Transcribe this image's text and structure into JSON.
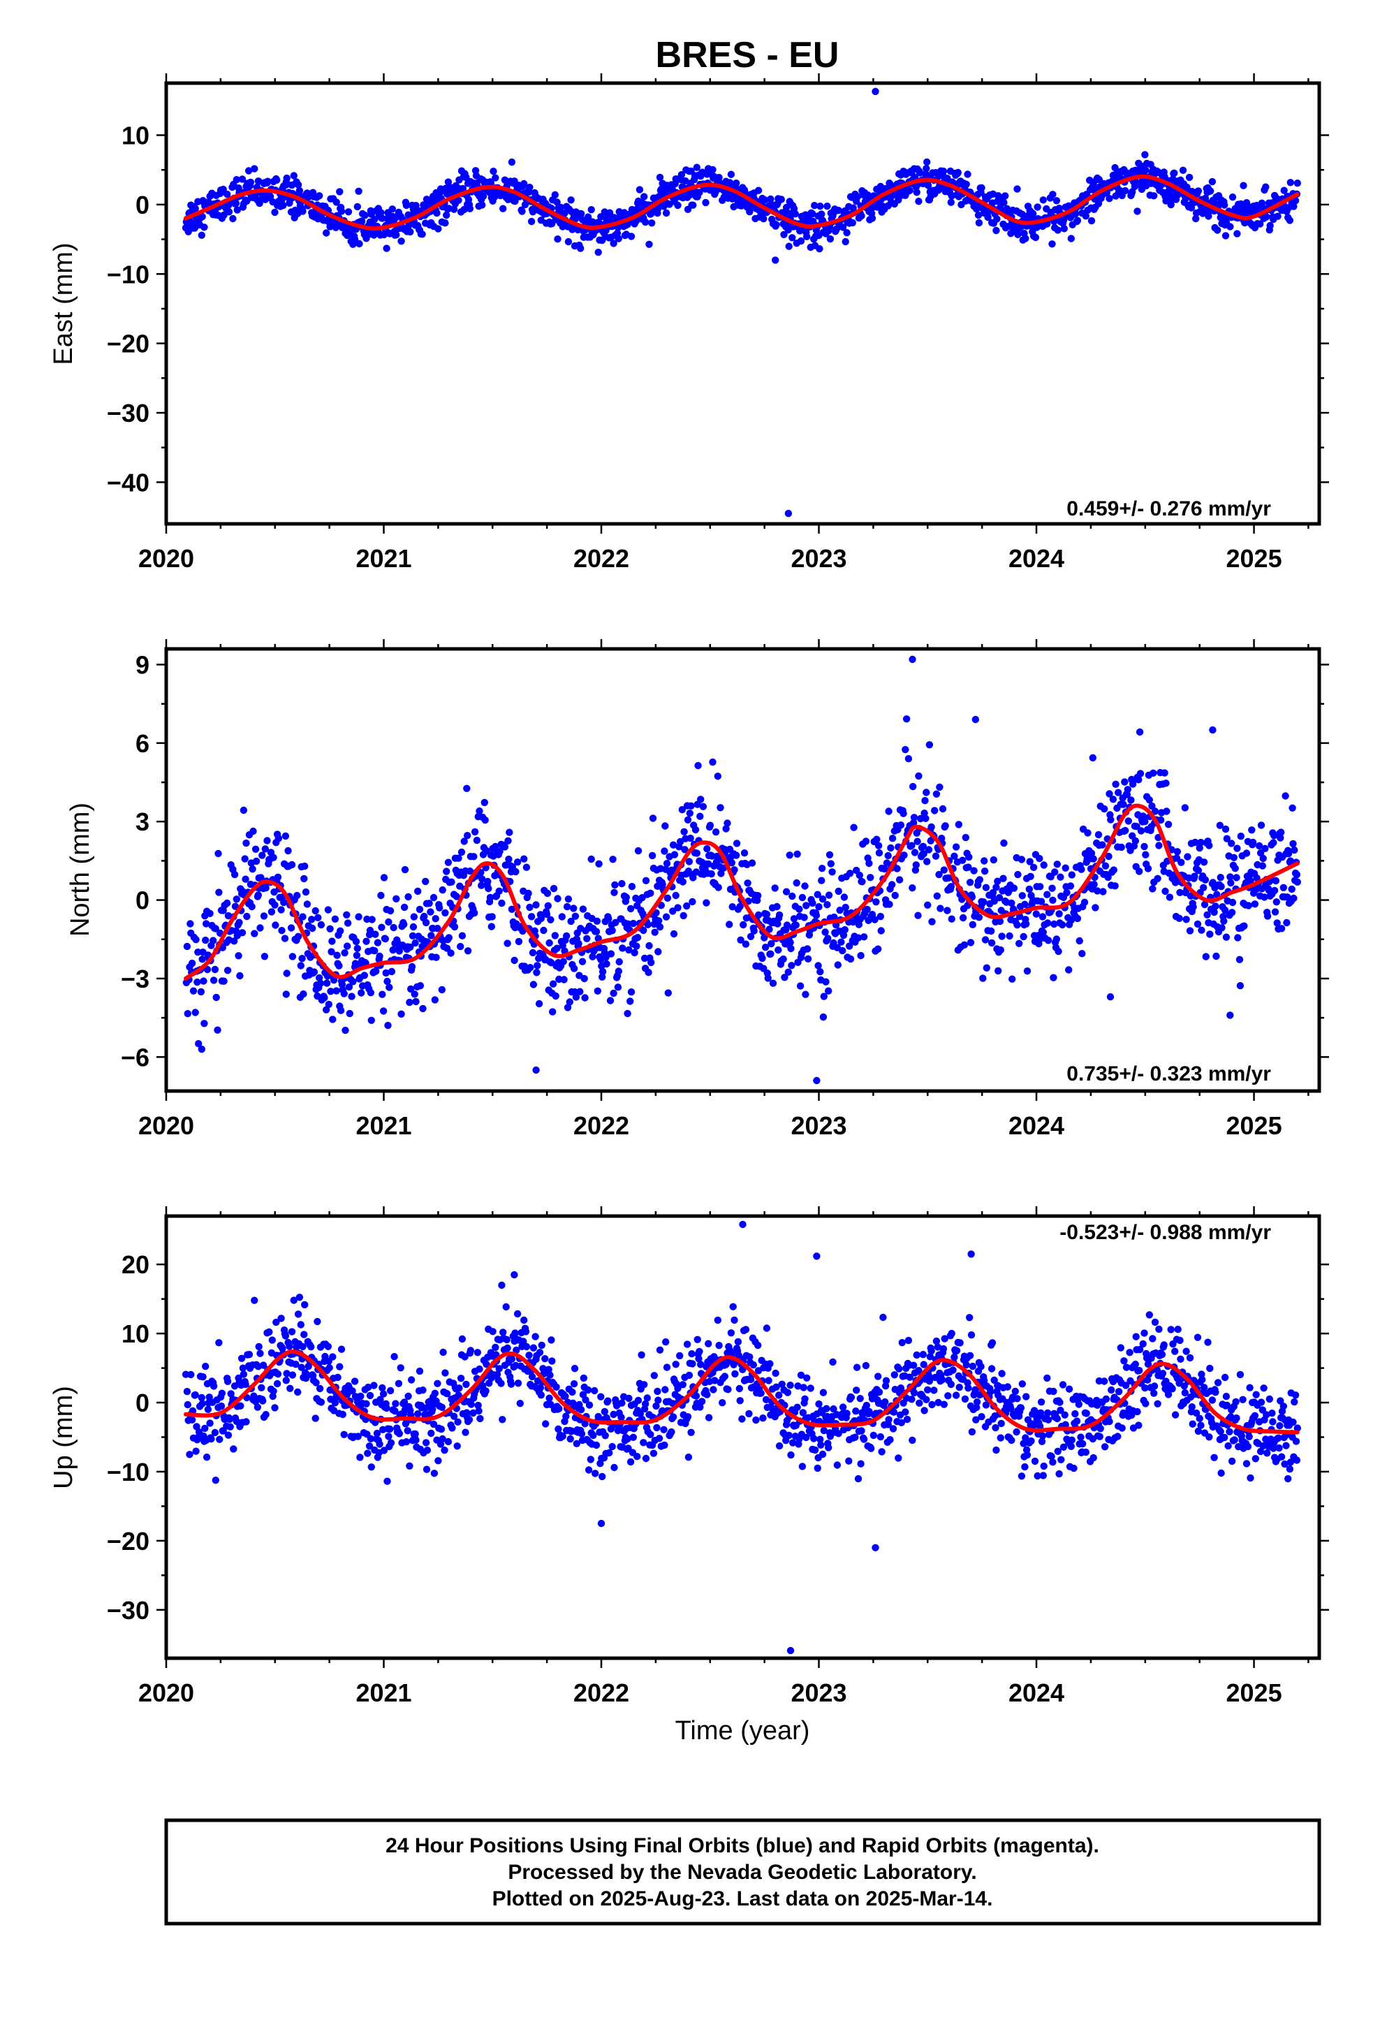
{
  "title": "BRES - EU",
  "xlabel": "Time (year)",
  "x_ticks": [
    "2020",
    "2021",
    "2022",
    "2023",
    "2024",
    "2025"
  ],
  "footer": {
    "line1": "24 Hour Positions Using Final Orbits (blue) and Rapid Orbits (magenta).",
    "line2": "Processed by the Nevada Geodetic Laboratory.",
    "line3": "Plotted on 2025-Aug-23. Last data on 2025-Mar-14."
  },
  "colors": {
    "final_orbits": "#0000ff",
    "model": "#ff0000",
    "frame": "#000000"
  },
  "chart_data": [
    {
      "type": "scatter",
      "panel": "east",
      "ylabel": "East (mm)",
      "rate_label": "0.459+/- 0.276 mm/yr",
      "xlim": [
        2020,
        2025.3
      ],
      "ylim": [
        -46,
        17.5
      ],
      "yticks": [
        10,
        0,
        -10,
        -20,
        -30,
        -40
      ],
      "yticklabels": [
        "10",
        "0",
        "−10",
        "−20",
        "−30",
        "−40"
      ],
      "series": [
        {
          "name": "",
          "kind": "daily-positions",
          "x_start": 2020.09,
          "x_end": 2025.2,
          "trend_per_year": 0.459,
          "seasonal": {
            "amplitude": 2.9,
            "peak_phase": 0.47,
            "drift": 0.1
          },
          "scatter_sd": 1.3,
          "outliers": [
            [
              2023.26,
              16.3
            ],
            [
              2022.86,
              -44.5
            ],
            [
              2022.8,
              -8.0
            ]
          ]
        },
        {
          "name": "",
          "kind": "model",
          "x": [
            2020.09,
            2020.2,
            2020.35,
            2020.47,
            2020.6,
            2020.75,
            2020.9,
            2021.0,
            2021.15,
            2021.3,
            2021.47,
            2021.6,
            2021.75,
            2021.9,
            2022.0,
            2022.15,
            2022.3,
            2022.47,
            2022.6,
            2022.75,
            2022.9,
            2023.0,
            2023.15,
            2023.3,
            2023.47,
            2023.6,
            2023.75,
            2023.9,
            2024.0,
            2024.15,
            2024.3,
            2024.47,
            2024.6,
            2024.75,
            2024.9,
            2025.0,
            2025.2
          ],
          "y": [
            -2.0,
            -0.5,
            1.5,
            2.0,
            1.0,
            -1.5,
            -3.2,
            -3.3,
            -1.8,
            0.8,
            2.5,
            1.8,
            -0.8,
            -3.0,
            -3.2,
            -1.8,
            1.0,
            2.8,
            2.1,
            -0.5,
            -2.8,
            -3.0,
            -1.5,
            1.5,
            3.5,
            2.8,
            0.3,
            -2.3,
            -2.5,
            -1.0,
            2.0,
            4.0,
            3.1,
            0.5,
            -1.5,
            -1.7,
            1.5
          ]
        }
      ]
    },
    {
      "type": "scatter",
      "panel": "north",
      "ylabel": "North (mm)",
      "rate_label": "0.735+/- 0.323 mm/yr",
      "xlim": [
        2020,
        2025.3
      ],
      "ylim": [
        -7.3,
        9.6
      ],
      "yticks": [
        9,
        6,
        3,
        0,
        -3,
        -6
      ],
      "yticklabels": [
        "9",
        "6",
        "3",
        "0",
        "−3",
        "−6"
      ],
      "series": [
        {
          "name": "",
          "kind": "daily-positions",
          "x_start": 2020.09,
          "x_end": 2025.2,
          "trend_per_year": 0.735,
          "scatter_sd": 1.2,
          "outliers": [
            [
              2023.43,
              9.2
            ],
            [
              2023.72,
              6.9
            ],
            [
              2024.81,
              6.5
            ],
            [
              2022.99,
              -6.9
            ],
            [
              2024.34,
              -3.7
            ],
            [
              2024.89,
              -4.4
            ],
            [
              2021.7,
              -6.5
            ]
          ]
        },
        {
          "name": "",
          "kind": "model",
          "x": [
            2020.09,
            2020.2,
            2020.3,
            2020.4,
            2020.47,
            2020.55,
            2020.65,
            2020.78,
            2020.9,
            2021.0,
            2021.15,
            2021.3,
            2021.4,
            2021.47,
            2021.55,
            2021.65,
            2021.78,
            2021.9,
            2022.0,
            2022.15,
            2022.3,
            2022.4,
            2022.47,
            2022.55,
            2022.65,
            2022.78,
            2022.9,
            2023.0,
            2023.15,
            2023.3,
            2023.4,
            2023.45,
            2023.55,
            2023.65,
            2023.78,
            2023.9,
            2024.0,
            2024.15,
            2024.3,
            2024.4,
            2024.47,
            2024.55,
            2024.65,
            2024.78,
            2024.9,
            2025.0,
            2025.2
          ],
          "y": [
            -3.0,
            -2.3,
            -0.8,
            0.4,
            0.7,
            0.2,
            -1.6,
            -2.9,
            -2.6,
            -2.4,
            -2.2,
            -0.8,
            0.8,
            1.4,
            0.9,
            -1.0,
            -2.1,
            -1.9,
            -1.6,
            -1.2,
            0.4,
            1.8,
            2.2,
            1.8,
            0.0,
            -1.4,
            -1.2,
            -0.9,
            -0.6,
            0.8,
            2.3,
            2.8,
            2.2,
            0.4,
            -0.6,
            -0.5,
            -0.3,
            -0.1,
            1.6,
            3.2,
            3.6,
            3.0,
            1.0,
            0.0,
            0.3,
            0.6,
            1.4
          ]
        }
      ]
    },
    {
      "type": "scatter",
      "panel": "up",
      "ylabel": "Up (mm)",
      "rate_label": "-0.523+/- 0.988 mm/yr",
      "xlim": [
        2020,
        2025.3
      ],
      "ylim": [
        -37,
        27
      ],
      "yticks": [
        20,
        10,
        0,
        -10,
        -20,
        -30
      ],
      "yticklabels": [
        "20",
        "10",
        "0",
        "−10",
        "−20",
        "−30"
      ],
      "series": [
        {
          "name": "",
          "kind": "daily-positions",
          "x_start": 2020.09,
          "x_end": 2025.2,
          "trend_per_year": -0.523,
          "scatter_sd": 3.2,
          "outliers": [
            [
              2022.65,
              25.8
            ],
            [
              2022.87,
              -35.9
            ],
            [
              2023.26,
              -21.0
            ],
            [
              2023.7,
              21.5
            ],
            [
              2022.99,
              21.2
            ],
            [
              2021.6,
              18.5
            ],
            [
              2022.0,
              -17.5
            ]
          ]
        },
        {
          "name": "",
          "kind": "model",
          "x": [
            2020.09,
            2020.25,
            2020.4,
            2020.52,
            2020.6,
            2020.7,
            2020.82,
            2020.95,
            2021.1,
            2021.25,
            2021.4,
            2021.52,
            2021.6,
            2021.7,
            2021.82,
            2021.95,
            2022.1,
            2022.25,
            2022.4,
            2022.52,
            2022.6,
            2022.7,
            2022.82,
            2022.95,
            2023.1,
            2023.25,
            2023.4,
            2023.52,
            2023.6,
            2023.7,
            2023.82,
            2023.95,
            2024.1,
            2024.25,
            2024.4,
            2024.52,
            2024.6,
            2024.7,
            2024.82,
            2024.95,
            2025.1,
            2025.2
          ],
          "y": [
            -1.7,
            -1.5,
            2.5,
            6.5,
            7.3,
            5.0,
            0.5,
            -2.2,
            -2.3,
            -2.0,
            1.8,
            6.2,
            7.0,
            4.5,
            0.0,
            -2.6,
            -2.8,
            -2.5,
            1.0,
            5.5,
            6.5,
            4.2,
            -0.5,
            -3.0,
            -3.2,
            -2.6,
            1.5,
            5.5,
            6.0,
            3.8,
            -1.0,
            -3.8,
            -3.8,
            -3.3,
            0.5,
            4.8,
            5.5,
            3.2,
            -1.5,
            -3.8,
            -4.2,
            -4.3
          ]
        }
      ]
    }
  ]
}
